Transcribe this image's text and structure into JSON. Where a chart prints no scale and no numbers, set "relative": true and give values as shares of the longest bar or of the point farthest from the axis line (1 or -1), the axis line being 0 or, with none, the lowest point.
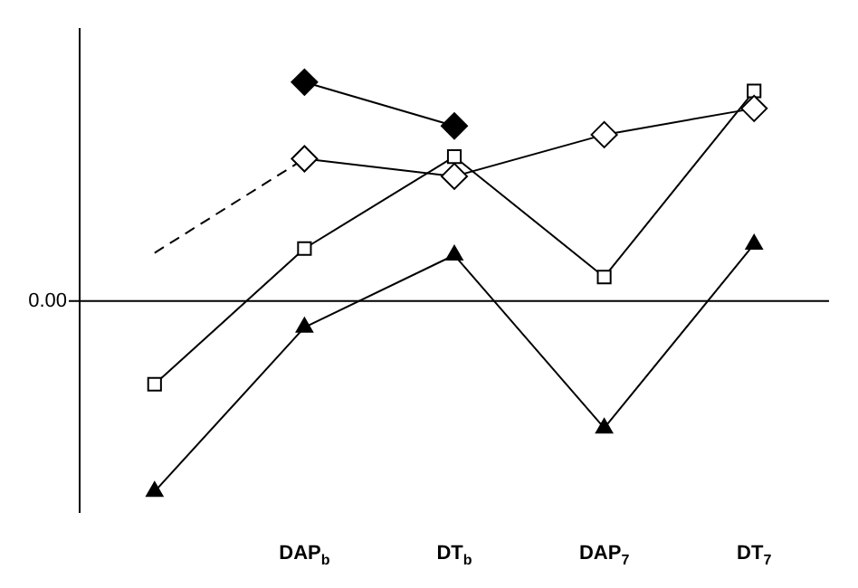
{
  "chart_data": {
    "type": "line",
    "relative": true,
    "categories": [
      null,
      "DAP$_{b}$",
      "DT$_{b}$",
      "DAP$_{7}$",
      "DT$_{7}$"
    ],
    "series": [
      {
        "color": "#000000",
        "marker": "diamond",
        "values": [
          null,
          1,
          0.8,
          null,
          null
        ]
      },
      {
        "color": "#000000",
        "marker": "diamond",
        "values": [
          null,
          0.65,
          0.57,
          0.76,
          0.88
        ]
      },
      {
        "color": "#000000",
        "marker": "none",
        "line_style": "dashed",
        "values": [
          0.22,
          0.65,
          null,
          null,
          null
        ]
      },
      {
        "color": "#000000",
        "marker": "square",
        "values": [
          -0.38,
          0.24,
          0.66,
          0.11,
          0.96
        ]
      },
      {
        "color": "#000000",
        "marker": "triangle",
        "values": [
          -0.87,
          -0.12,
          0.21,
          -0.58,
          0.26
        ]
      }
    ],
    "ref_lines": [
      {
        "axis": "y",
        "value": 0,
        "label": "0.00"
      }
    ],
    "grid": false,
    "legend": false
  }
}
